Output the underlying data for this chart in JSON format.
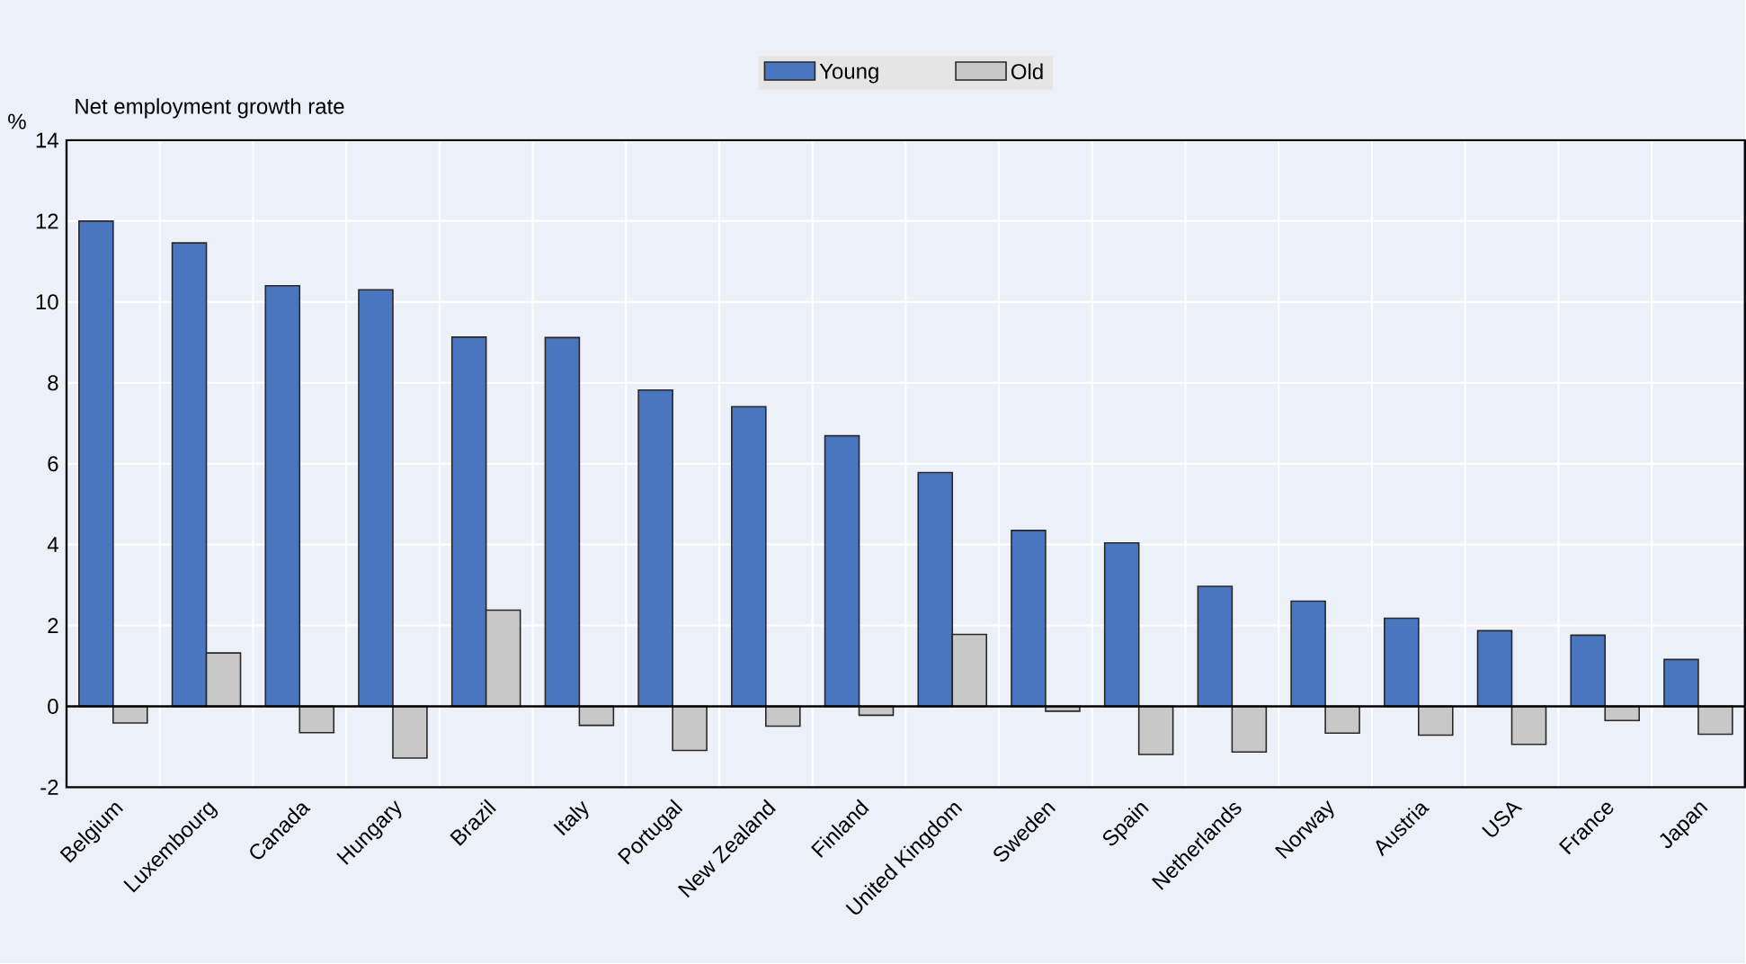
{
  "chart_data": {
    "type": "bar",
    "title": "Net employment growth rate",
    "ylabel": "%",
    "categories": [
      "Belgium",
      "Luxembourg",
      "Canada",
      "Hungary",
      "Brazil",
      "Italy",
      "Portugal",
      "New Zealand",
      "Finland",
      "United Kingdom",
      "Sweden",
      "Spain",
      "Netherlands",
      "Norway",
      "Austria",
      "USA",
      "France",
      "Japan"
    ],
    "series": [
      {
        "name": "Young",
        "color": "#4a76c0",
        "values": [
          12.0,
          11.46,
          10.4,
          10.3,
          9.13,
          9.12,
          7.82,
          7.41,
          6.69,
          5.78,
          4.35,
          4.04,
          2.97,
          2.6,
          2.18,
          1.87,
          1.76,
          1.16
        ]
      },
      {
        "name": "Old",
        "color": "#c8c8c8",
        "values": [
          -0.41,
          1.32,
          -0.65,
          -1.28,
          2.38,
          -0.47,
          -1.09,
          -0.49,
          -0.22,
          1.78,
          -0.12,
          -1.19,
          -1.13,
          -0.66,
          -0.71,
          -0.94,
          -0.35,
          -0.69
        ]
      }
    ],
    "ylim": [
      -2,
      14
    ],
    "yticks": [
      -2,
      0,
      2,
      4,
      6,
      8,
      10,
      12,
      14
    ],
    "grid": true,
    "legend": "top"
  }
}
